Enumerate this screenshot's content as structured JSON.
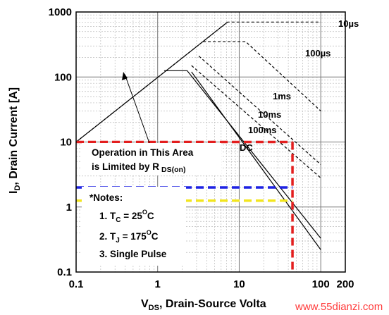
{
  "chart_data": {
    "type": "line",
    "title": "",
    "xlabel": "V",
    "xlabel_sub": "DS",
    "xlabel_rest": ", Drain-Source Volta",
    "ylabel": "I",
    "ylabel_sub": "D",
    "ylabel_rest": ", Drain Current [A]",
    "x_scale": "log",
    "y_scale": "log",
    "xlim": [
      0.1,
      200
    ],
    "ylim": [
      0.1,
      1000
    ],
    "x_ticks": [
      {
        "value": 0.1,
        "label": "0.1"
      },
      {
        "value": 1,
        "label": "1"
      },
      {
        "value": 10,
        "label": "10"
      },
      {
        "value": 100,
        "label": "100"
      },
      {
        "value": 200,
        "label": "200"
      }
    ],
    "y_ticks": [
      {
        "value": 0.1,
        "label": "0.1"
      },
      {
        "value": 1,
        "label": "1"
      },
      {
        "value": 10,
        "label": "10"
      },
      {
        "value": 100,
        "label": "100"
      },
      {
        "value": 1000,
        "label": "1000"
      }
    ],
    "grid": true,
    "series": [
      {
        "name": "10µs",
        "style": "dashed",
        "x": [
          0.1,
          7.2,
          100
        ],
        "y": [
          10,
          700,
          700
        ]
      },
      {
        "name": "100µs",
        "style": "dashed",
        "x": [
          3.6,
          12,
          100
        ],
        "y": [
          350,
          350,
          30
        ]
      },
      {
        "name": "1ms",
        "style": "dashed",
        "x": [
          3.2,
          100
        ],
        "y": [
          210,
          4.5
        ]
      },
      {
        "name": "10ms",
        "style": "dashed",
        "x": [
          2.6,
          100
        ],
        "y": [
          150,
          2.8
        ]
      },
      {
        "name": "100ms",
        "style": "solid",
        "x": [
          1.2,
          2.3,
          100
        ],
        "y": [
          125,
          125,
          0.33
        ]
      },
      {
        "name": "DC",
        "style": "solid",
        "x": [
          2.6,
          100
        ],
        "y": [
          120,
          0.22
        ]
      }
    ],
    "limit_line": {
      "x": [
        0.1,
        7.2
      ],
      "y": [
        10,
        700
      ]
    },
    "annotations": {
      "area_text_1": "Operation in This Area",
      "area_text_2": "is Limited by R",
      "area_text_sub": "DS(on)",
      "notes_title": "*Notes:",
      "note_1_pre": "1. T",
      "note_1_sub": "C",
      "note_1_mid": " = 25",
      "note_1_sup": "O",
      "note_1_end": "C",
      "note_2_pre": "2. T",
      "note_2_sub": "J",
      "note_2_mid": " = 175",
      "note_2_sup": "O",
      "note_2_end": "C",
      "note_3": "3. Single Pulse"
    },
    "overlay_lines": [
      {
        "name": "red-horizontal",
        "color": "#e31e1e",
        "y": 10,
        "x_end": 45
      },
      {
        "name": "blue-horizontal",
        "color": "#1e22e3",
        "y": 2,
        "x_end": 45
      },
      {
        "name": "yellow-horizontal",
        "color": "#f2e51e",
        "y": 1.25,
        "x_end": 45
      },
      {
        "name": "red-vertical",
        "color": "#e31e1e",
        "x": 45
      }
    ],
    "watermark": "www.55dianzi.com"
  }
}
